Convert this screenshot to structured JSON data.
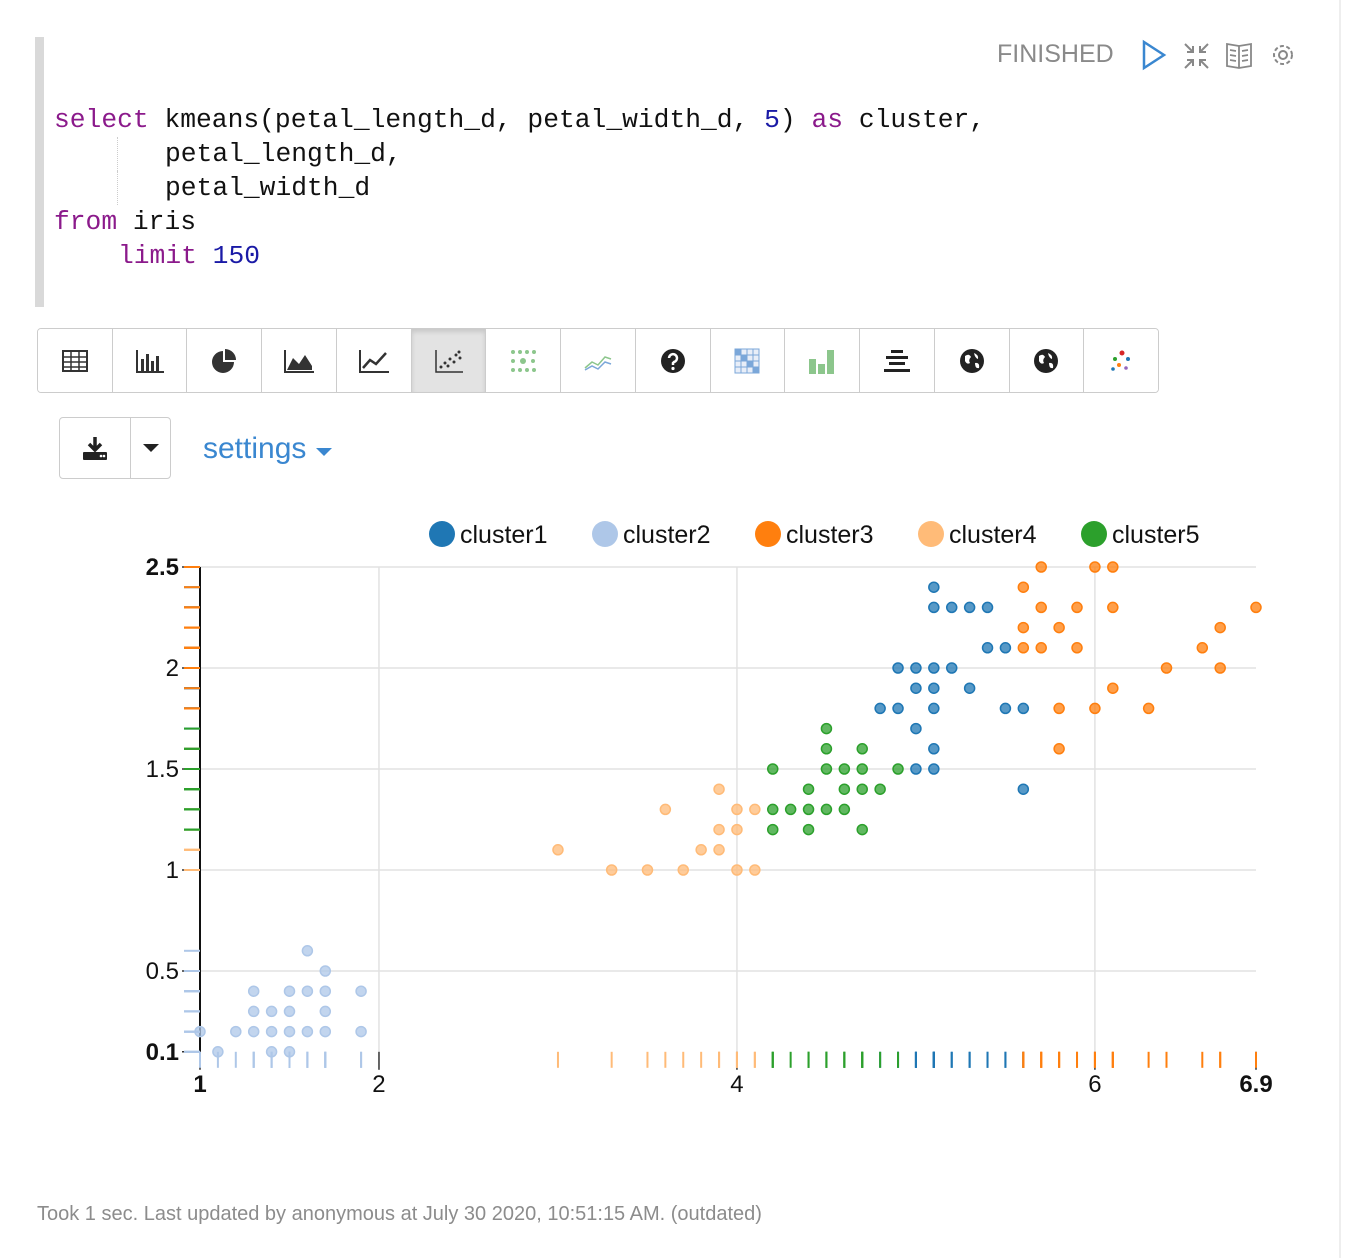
{
  "status": "FINISHED",
  "code": [
    [
      {
        "text": "select",
        "color": "#8b1a8b"
      },
      {
        "text": " kmeans(petal_length_d, petal_width_d, ",
        "color": "#111111"
      },
      {
        "text": "5",
        "color": "#1a1aa6"
      },
      {
        "text": ") ",
        "color": "#111111"
      },
      {
        "text": "as",
        "color": "#8b1a8b"
      },
      {
        "text": " cluster,",
        "color": "#111111"
      }
    ],
    [
      {
        "text": "petal_length_d,",
        "color": "#111111"
      }
    ],
    [
      {
        "text": "petal_width_d",
        "color": "#111111"
      }
    ],
    [
      {
        "text": "from",
        "color": "#8b1a8b"
      },
      {
        "text": " iris",
        "color": "#111111"
      }
    ],
    [
      {
        "text": "limit",
        "color": "#8b1a8b"
      },
      {
        "text": " 150",
        "color": "#1a1aa6"
      }
    ]
  ],
  "settings": "settings",
  "chart_data": {
    "type": "scatter",
    "legend": "top",
    "grid": true,
    "xlim": [
      1,
      6.9
    ],
    "xticks": [
      1,
      2,
      4,
      6,
      6.9
    ],
    "ylim": [
      0.1,
      2.5
    ],
    "yticks": [
      0.1,
      0.5,
      1,
      1.5,
      2,
      2.5
    ],
    "series": [
      {
        "name": "cluster1",
        "color": "#1f77b4",
        "x": [
          4.8,
          4.9,
          4.9,
          5.0,
          5.0,
          5.0,
          5.0,
          5.1,
          5.1,
          5.1,
          5.1,
          5.1,
          5.1,
          5.1,
          5.2,
          5.2,
          5.3,
          5.3,
          5.4,
          5.4,
          5.5,
          5.5,
          5.6,
          5.6
        ],
        "y": [
          1.8,
          1.8,
          2.0,
          1.7,
          1.9,
          2.0,
          1.5,
          2.4,
          2.3,
          2.0,
          1.9,
          1.8,
          1.6,
          1.5,
          2.3,
          2.0,
          2.3,
          1.9,
          2.3,
          2.1,
          2.1,
          1.8,
          1.8,
          1.4
        ]
      },
      {
        "name": "cluster2",
        "color": "#aec7e8",
        "x": [
          1.0,
          1.1,
          1.2,
          1.3,
          1.3,
          1.3,
          1.4,
          1.4,
          1.4,
          1.5,
          1.5,
          1.5,
          1.5,
          1.6,
          1.6,
          1.6,
          1.7,
          1.7,
          1.7,
          1.7,
          1.9,
          1.9
        ],
        "y": [
          0.2,
          0.1,
          0.2,
          0.4,
          0.3,
          0.2,
          0.1,
          0.2,
          0.3,
          0.4,
          0.3,
          0.2,
          0.1,
          0.6,
          0.4,
          0.2,
          0.5,
          0.4,
          0.3,
          0.2,
          0.4,
          0.2
        ]
      },
      {
        "name": "cluster3",
        "color": "#ff7f0e",
        "x": [
          5.6,
          5.6,
          5.6,
          5.7,
          5.7,
          5.7,
          5.8,
          5.8,
          5.8,
          5.9,
          5.9,
          6.0,
          6.0,
          6.1,
          6.1,
          6.1,
          6.3,
          6.4,
          6.6,
          6.7,
          6.7,
          6.9
        ],
        "y": [
          2.4,
          2.2,
          2.1,
          2.5,
          2.3,
          2.1,
          2.2,
          1.8,
          1.6,
          2.3,
          2.1,
          2.5,
          1.8,
          2.5,
          2.3,
          1.9,
          1.8,
          2.0,
          2.1,
          2.2,
          2.0,
          2.3
        ]
      },
      {
        "name": "cluster4",
        "color": "#ffbb78",
        "x": [
          3.0,
          3.3,
          3.5,
          3.6,
          3.7,
          3.8,
          3.9,
          3.9,
          3.9,
          4.0,
          4.0,
          4.0,
          4.1,
          4.1
        ],
        "y": [
          1.1,
          1.0,
          1.0,
          1.3,
          1.0,
          1.1,
          1.4,
          1.2,
          1.1,
          1.3,
          1.2,
          1.0,
          1.3,
          1.0
        ]
      },
      {
        "name": "cluster5",
        "color": "#2ca02c",
        "x": [
          4.2,
          4.2,
          4.2,
          4.3,
          4.4,
          4.4,
          4.4,
          4.5,
          4.5,
          4.5,
          4.5,
          4.6,
          4.6,
          4.6,
          4.7,
          4.7,
          4.7,
          4.7,
          4.8,
          4.9
        ],
        "y": [
          1.5,
          1.3,
          1.2,
          1.3,
          1.4,
          1.3,
          1.2,
          1.7,
          1.6,
          1.5,
          1.3,
          1.5,
          1.4,
          1.3,
          1.6,
          1.5,
          1.4,
          1.2,
          1.4,
          1.5
        ]
      }
    ]
  },
  "footer": "Took 1 sec. Last updated by anonymous at July 30 2020, 10:51:15 AM. (outdated)"
}
